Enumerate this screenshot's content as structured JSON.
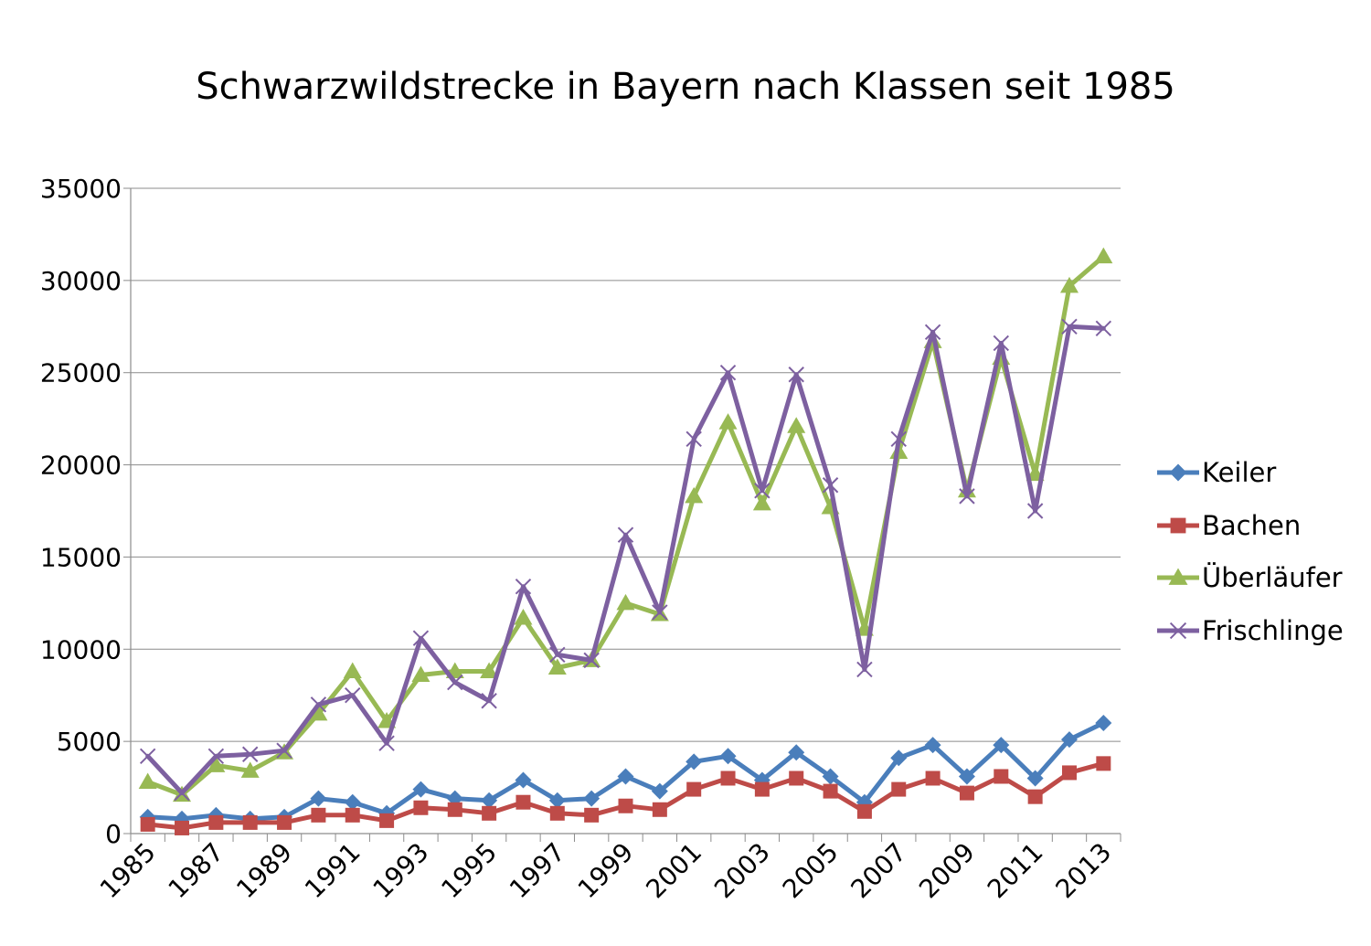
{
  "chart_data": {
    "type": "line",
    "title": "Schwarzwildstrecke in Bayern nach Klassen seit 1985",
    "x": [
      1985,
      1986,
      1987,
      1988,
      1989,
      1990,
      1991,
      1992,
      1993,
      1994,
      1995,
      1996,
      1997,
      1998,
      1999,
      2000,
      2001,
      2002,
      2003,
      2004,
      2005,
      2006,
      2007,
      2008,
      2009,
      2010,
      2011,
      2012,
      2013
    ],
    "x_tick_labels": [
      "1985",
      "1987",
      "1989",
      "1991",
      "1993",
      "1995",
      "1997",
      "1999",
      "2001",
      "2003",
      "2005",
      "2007",
      "2009",
      "2011",
      "2013"
    ],
    "y_tick_labels": [
      "0",
      "5000",
      "10000",
      "15000",
      "20000",
      "25000",
      "30000",
      "35000"
    ],
    "ylim": [
      0,
      35000
    ],
    "grid": "horizontal",
    "legend_position": "right",
    "series": [
      {
        "name": "Keiler",
        "color": "#4a7ebb",
        "marker": "diamond",
        "values": [
          900,
          800,
          1000,
          800,
          900,
          1900,
          1700,
          1100,
          2400,
          1900,
          1800,
          2900,
          1800,
          1900,
          3100,
          2300,
          3900,
          4200,
          2900,
          4400,
          3100,
          1700,
          4100,
          4800,
          3100,
          4800,
          3000,
          5100,
          6000
        ]
      },
      {
        "name": "Bachen",
        "color": "#be4b48",
        "marker": "square",
        "values": [
          500,
          300,
          600,
          600,
          600,
          1000,
          1000,
          700,
          1400,
          1300,
          1100,
          1700,
          1100,
          1000,
          1500,
          1300,
          2400,
          3000,
          2400,
          3000,
          2300,
          1200,
          2400,
          3000,
          2200,
          3100,
          2000,
          3300,
          3800
        ]
      },
      {
        "name": "Überläufer",
        "color": "#98b954",
        "marker": "triangle",
        "values": [
          2800,
          2100,
          3700,
          3400,
          4400,
          6500,
          8800,
          6100,
          8600,
          8800,
          8800,
          11700,
          9000,
          9400,
          12500,
          11900,
          18300,
          22300,
          17900,
          22100,
          17700,
          11100,
          20700,
          26700,
          18600,
          25800,
          19500,
          29700,
          31300
        ]
      },
      {
        "name": "Frischlinge",
        "color": "#7d60a0",
        "marker": "x",
        "values": [
          4200,
          2200,
          4200,
          4300,
          4500,
          7000,
          7500,
          4900,
          10600,
          8200,
          7200,
          13400,
          9700,
          9400,
          16200,
          12000,
          21400,
          25000,
          18600,
          24900,
          18900,
          8900,
          21400,
          27200,
          18300,
          26600,
          17500,
          27500,
          27400
        ]
      }
    ]
  }
}
